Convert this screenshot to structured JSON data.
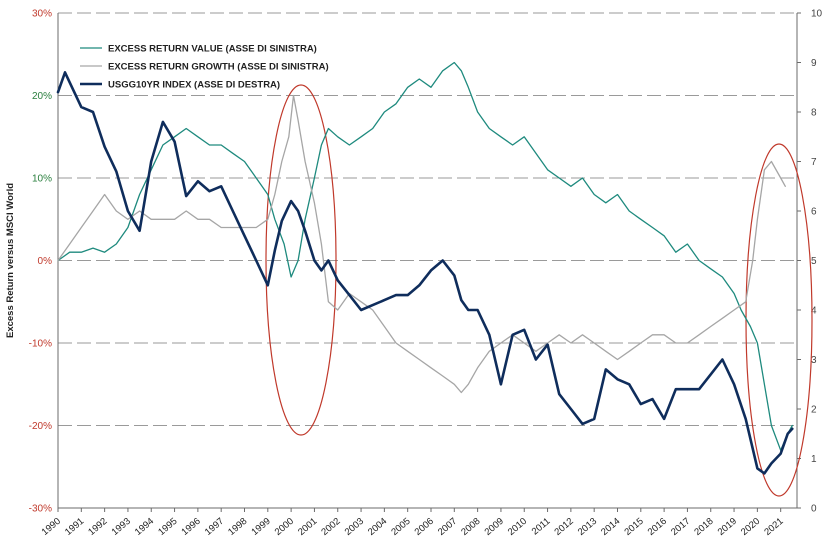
{
  "chart_data": {
    "type": "line",
    "ylabel": "Excess Return versus MSCI World",
    "left_axis": {
      "range": [
        -30,
        30
      ],
      "ticks": [
        {
          "value": 30,
          "label": "30%",
          "color": "#c0392b"
        },
        {
          "value": 20,
          "label": "20%",
          "color": "#2a7f3e"
        },
        {
          "value": 10,
          "label": "10%",
          "color": "#2a7f3e"
        },
        {
          "value": 0,
          "label": "0%",
          "color": "#c0392b"
        },
        {
          "value": -10,
          "label": "-10%",
          "color": "#c0392b"
        },
        {
          "value": -20,
          "label": "-20%",
          "color": "#c0392b"
        },
        {
          "value": -30,
          "label": "-30%",
          "color": "#c0392b"
        }
      ]
    },
    "right_axis": {
      "range": [
        0,
        10
      ],
      "ticks": [
        "0",
        "1",
        "2",
        "3",
        "4",
        "5",
        "6",
        "7",
        "8",
        "9",
        "10"
      ]
    },
    "x_axis": {
      "range": [
        1990,
        2021.7
      ],
      "ticks": [
        "1990",
        "1991",
        "1992",
        "1993",
        "1994",
        "1995",
        "1996",
        "1997",
        "1998",
        "1999",
        "2000",
        "2001",
        "2002",
        "2003",
        "2004",
        "2005",
        "2006",
        "2007",
        "2008",
        "2009",
        "2010",
        "2011",
        "2012",
        "2013",
        "2014",
        "2015",
        "2016",
        "2017",
        "2018",
        "2019",
        "2020",
        "2021"
      ]
    },
    "grid": "horizontal dashed",
    "legend_position": "top-left",
    "series": [
      {
        "name": "EXCESS RETURN VALUE (ASSE DI SINISTRA)",
        "axis": "left",
        "color": "#1e8a7e",
        "width": 1.3,
        "x": [
          1990,
          1990.5,
          1991,
          1991.5,
          1992,
          1992.5,
          1993,
          1993.5,
          1994,
          1994.5,
          1995,
          1995.5,
          1996,
          1996.5,
          1997,
          1997.5,
          1998,
          1998.5,
          1999,
          1999.3,
          1999.7,
          2000,
          2000.3,
          2000.6,
          2001,
          2001.3,
          2001.6,
          2002,
          2002.5,
          2003,
          2003.5,
          2004,
          2004.5,
          2005,
          2005.5,
          2006,
          2006.5,
          2007,
          2007.3,
          2007.6,
          2008,
          2008.5,
          2009,
          2009.5,
          2010,
          2010.5,
          2011,
          2011.5,
          2012,
          2012.5,
          2013,
          2013.5,
          2014,
          2014.5,
          2015,
          2015.5,
          2016,
          2016.5,
          2017,
          2017.5,
          2018,
          2018.5,
          2019,
          2019.3,
          2019.7,
          2020,
          2020.3,
          2020.6,
          2021,
          2021.3,
          2021.5
        ],
        "y": [
          0,
          1,
          1,
          1.5,
          1,
          2,
          4,
          8,
          11,
          14,
          15,
          16,
          15,
          14,
          14,
          13,
          12,
          10,
          8,
          5,
          2,
          -2,
          0,
          5,
          10,
          14,
          16,
          15,
          14,
          15,
          16,
          18,
          19,
          21,
          22,
          21,
          23,
          24,
          23,
          21,
          18,
          16,
          15,
          14,
          15,
          13,
          11,
          10,
          9,
          10,
          8,
          7,
          8,
          6,
          5,
          4,
          3,
          1,
          2,
          0,
          -1,
          -2,
          -4,
          -6,
          -8,
          -10,
          -15,
          -20,
          -23,
          -21,
          -20
        ]
      },
      {
        "name": "EXCESS RETURN GROWTH (ASSE DI SINISTRA)",
        "axis": "left",
        "color": "#a6a6a6",
        "width": 1.3,
        "x": [
          1990,
          1990.5,
          1991,
          1991.5,
          1992,
          1992.5,
          1993,
          1993.5,
          1994,
          1994.5,
          1995,
          1995.5,
          1996,
          1996.5,
          1997,
          1997.5,
          1998,
          1998.5,
          1999,
          1999.3,
          1999.6,
          1999.9,
          2000.1,
          2000.3,
          2000.6,
          2001,
          2001.3,
          2001.6,
          2002,
          2002.5,
          2003,
          2003.5,
          2004,
          2004.5,
          2005,
          2005.5,
          2006,
          2006.5,
          2007,
          2007.3,
          2007.6,
          2008,
          2008.5,
          2009,
          2009.5,
          2010,
          2010.5,
          2011,
          2011.5,
          2012,
          2012.5,
          2013,
          2013.5,
          2014,
          2014.5,
          2015,
          2015.5,
          2016,
          2016.5,
          2017,
          2017.5,
          2018,
          2018.5,
          2019,
          2019.5,
          2019.8,
          2020,
          2020.3,
          2020.6,
          2021,
          2021.2
        ],
        "y": [
          0,
          2,
          4,
          6,
          8,
          6,
          5,
          6,
          5,
          5,
          5,
          6,
          5,
          5,
          4,
          4,
          4,
          4,
          5,
          8,
          12,
          15,
          20,
          17,
          12,
          7,
          2,
          -5,
          -6,
          -4,
          -5,
          -6,
          -8,
          -10,
          -11,
          -12,
          -13,
          -14,
          -15,
          -16,
          -15,
          -13,
          -11,
          -10,
          -9,
          -10,
          -11,
          -10,
          -9,
          -10,
          -9,
          -10,
          -11,
          -12,
          -11,
          -10,
          -9,
          -9,
          -10,
          -10,
          -9,
          -8,
          -7,
          -6,
          -5,
          0,
          5,
          11,
          12,
          10,
          9
        ]
      },
      {
        "name": "USGG10YR INDEX (ASSE DI DESTRA)",
        "axis": "right",
        "color": "#0f2d5c",
        "width": 2.6,
        "x": [
          1990,
          1990.3,
          1990.6,
          1991,
          1991.5,
          1992,
          1992.5,
          1993,
          1993.5,
          1994,
          1994.5,
          1995,
          1995.5,
          1996,
          1996.5,
          1997,
          1997.5,
          1998,
          1998.5,
          1999,
          1999.3,
          1999.6,
          2000,
          2000.3,
          2000.6,
          2001,
          2001.3,
          2001.6,
          2002,
          2002.5,
          2003,
          2003.5,
          2004,
          2004.5,
          2005,
          2005.5,
          2006,
          2006.5,
          2007,
          2007.3,
          2007.6,
          2008,
          2008.5,
          2009,
          2009.5,
          2010,
          2010.5,
          2011,
          2011.5,
          2012,
          2012.5,
          2013,
          2013.5,
          2014,
          2014.5,
          2015,
          2015.5,
          2016,
          2016.5,
          2017,
          2017.5,
          2018,
          2018.5,
          2019,
          2019.5,
          2020,
          2020.3,
          2020.6,
          2021,
          2021.3,
          2021.5
        ],
        "y": [
          8.4,
          8.8,
          8.5,
          8.1,
          8.0,
          7.3,
          6.8,
          6.0,
          5.6,
          7.0,
          7.8,
          7.4,
          6.3,
          6.6,
          6.4,
          6.5,
          6.0,
          5.5,
          5.0,
          4.5,
          5.2,
          5.8,
          6.2,
          6.0,
          5.6,
          5.0,
          4.8,
          5.0,
          4.6,
          4.3,
          4.0,
          4.1,
          4.2,
          4.3,
          4.3,
          4.5,
          4.8,
          5.0,
          4.7,
          4.2,
          4.0,
          4.0,
          3.5,
          2.5,
          3.5,
          3.6,
          3.0,
          3.3,
          2.3,
          2.0,
          1.7,
          1.8,
          2.8,
          2.6,
          2.5,
          2.1,
          2.2,
          1.8,
          2.4,
          2.4,
          2.4,
          2.7,
          3.0,
          2.5,
          1.8,
          0.8,
          0.7,
          0.9,
          1.1,
          1.5,
          1.6
        ]
      }
    ]
  }
}
